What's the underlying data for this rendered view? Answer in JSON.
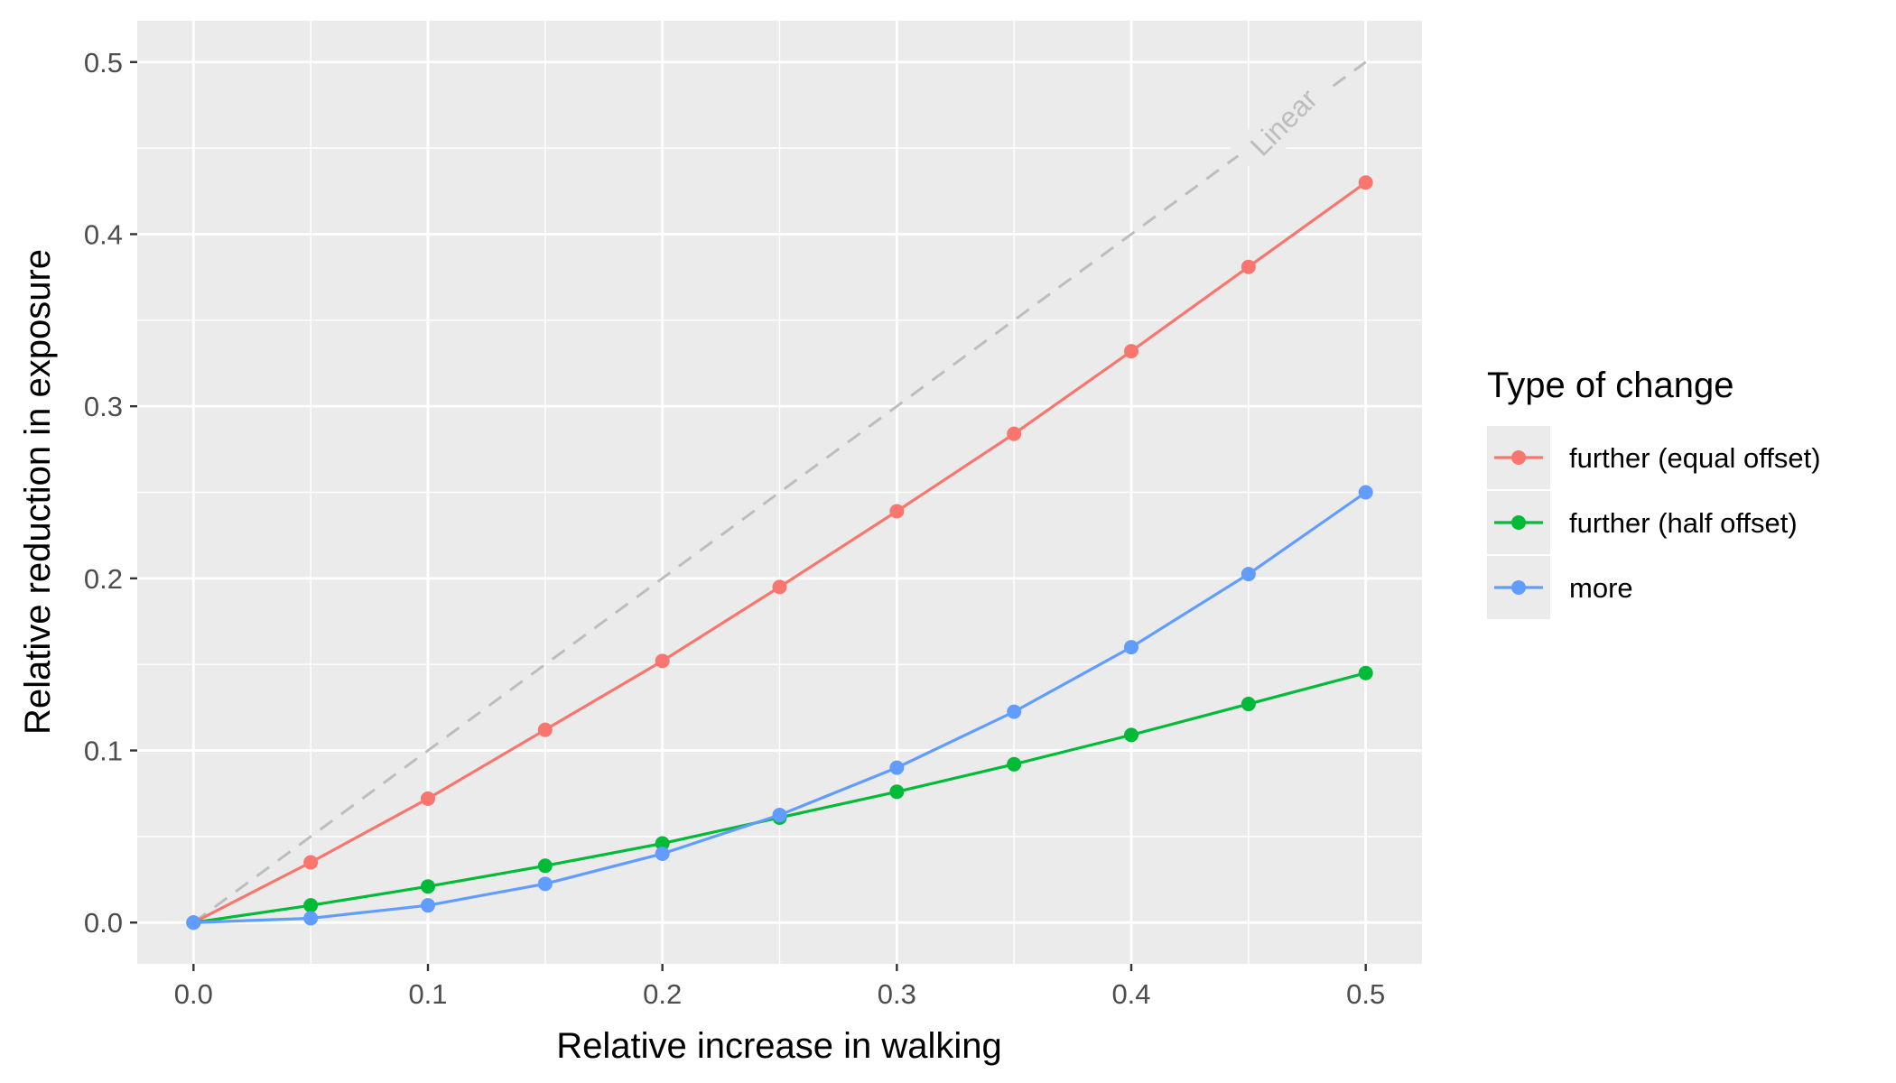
{
  "chart_data": {
    "type": "line",
    "xlabel": "Relative increase in walking",
    "ylabel": "Relative reduction in exposure",
    "xlim": [
      -0.024,
      0.524
    ],
    "ylim": [
      -0.024,
      0.524
    ],
    "x_ticks": [
      "0.0",
      "0.1",
      "0.2",
      "0.3",
      "0.4",
      "0.5"
    ],
    "y_ticks": [
      "0.0",
      "0.1",
      "0.2",
      "0.3",
      "0.4",
      "0.5"
    ],
    "x_tick_values": [
      0,
      0.1,
      0.2,
      0.3,
      0.4,
      0.5
    ],
    "y_tick_values": [
      0,
      0.1,
      0.2,
      0.3,
      0.4,
      0.5
    ],
    "grid": true,
    "background": "#ebebeb",
    "x": [
      0,
      0.05,
      0.1,
      0.15,
      0.2,
      0.25,
      0.3,
      0.35,
      0.4,
      0.45,
      0.5
    ],
    "series": [
      {
        "name": "further (equal offset)",
        "color": "#f8766d",
        "values": [
          0,
          0.035,
          0.072,
          0.112,
          0.152,
          0.195,
          0.239,
          0.284,
          0.332,
          0.381,
          0.43
        ]
      },
      {
        "name": "further (half offset)",
        "color": "#00ba38",
        "values": [
          0,
          0.01,
          0.021,
          0.033,
          0.046,
          0.061,
          0.076,
          0.092,
          0.109,
          0.127,
          0.145
        ]
      },
      {
        "name": "more",
        "color": "#619cff",
        "values": [
          0,
          0.0025,
          0.01,
          0.0225,
          0.04,
          0.0625,
          0.09,
          0.1225,
          0.16,
          0.2025,
          0.25
        ]
      }
    ],
    "reference_line": {
      "label": "Linear",
      "color": "#bdbdbd",
      "style": "dashed",
      "from": [
        0,
        0
      ],
      "to": [
        0.5,
        0.5
      ]
    },
    "legend": {
      "title": "Type of change",
      "placement": "right"
    }
  }
}
